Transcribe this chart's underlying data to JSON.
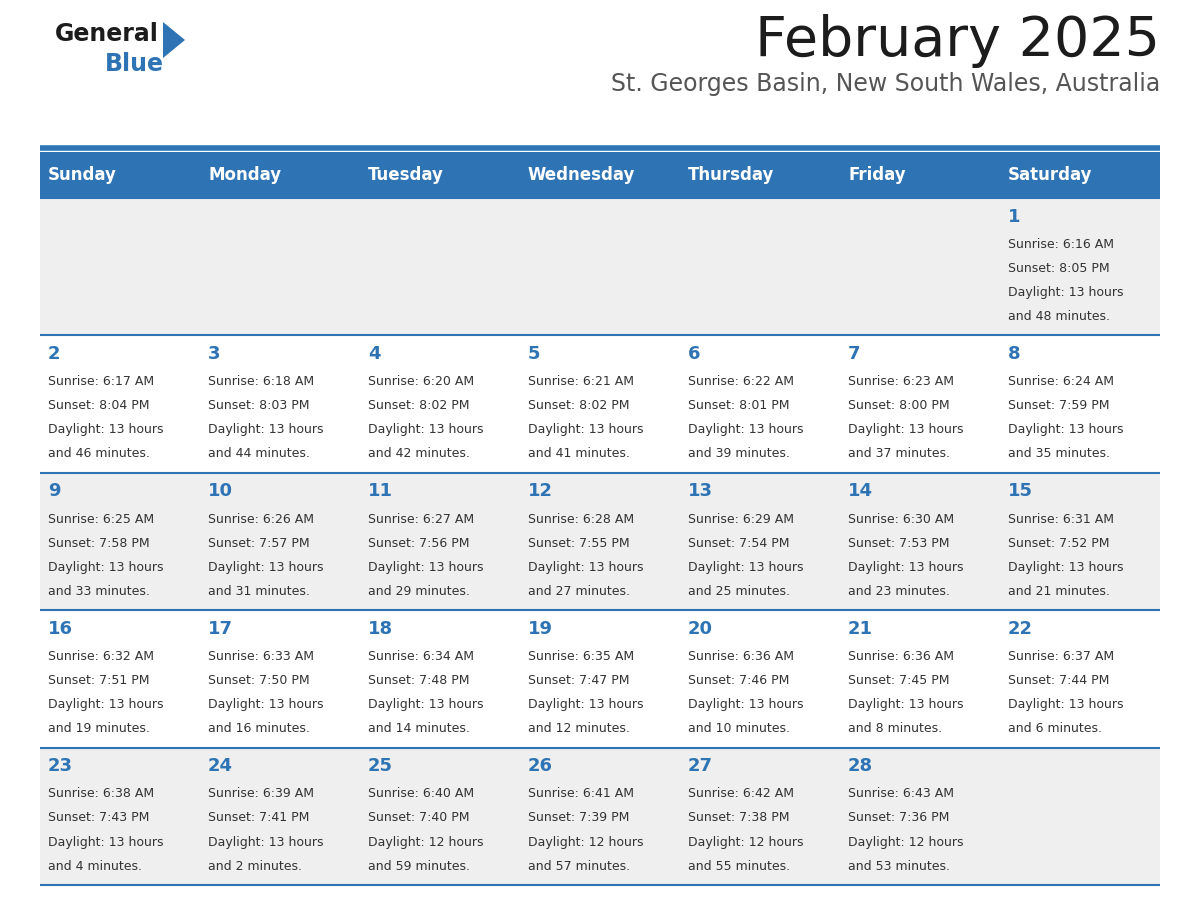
{
  "title": "February 2025",
  "subtitle": "St. Georges Basin, New South Wales, Australia",
  "days_of_week": [
    "Sunday",
    "Monday",
    "Tuesday",
    "Wednesday",
    "Thursday",
    "Friday",
    "Saturday"
  ],
  "header_bg": "#2E74B5",
  "header_text": "#FFFFFF",
  "row_bg_odd": "#EFEFEF",
  "row_bg_even": "#FFFFFF",
  "separator_color": "#2E74B5",
  "day_number_color": "#2E74B5",
  "info_color": "#333333",
  "calendar": [
    [
      null,
      null,
      null,
      null,
      null,
      null,
      {
        "day": "1",
        "sunrise": "6:16 AM",
        "sunset": "8:05 PM",
        "daylight_h": "13 hours",
        "daylight_m": "48 minutes."
      }
    ],
    [
      {
        "day": "2",
        "sunrise": "6:17 AM",
        "sunset": "8:04 PM",
        "daylight_h": "13 hours",
        "daylight_m": "46 minutes."
      },
      {
        "day": "3",
        "sunrise": "6:18 AM",
        "sunset": "8:03 PM",
        "daylight_h": "13 hours",
        "daylight_m": "44 minutes."
      },
      {
        "day": "4",
        "sunrise": "6:20 AM",
        "sunset": "8:02 PM",
        "daylight_h": "13 hours",
        "daylight_m": "42 minutes."
      },
      {
        "day": "5",
        "sunrise": "6:21 AM",
        "sunset": "8:02 PM",
        "daylight_h": "13 hours",
        "daylight_m": "41 minutes."
      },
      {
        "day": "6",
        "sunrise": "6:22 AM",
        "sunset": "8:01 PM",
        "daylight_h": "13 hours",
        "daylight_m": "39 minutes."
      },
      {
        "day": "7",
        "sunrise": "6:23 AM",
        "sunset": "8:00 PM",
        "daylight_h": "13 hours",
        "daylight_m": "37 minutes."
      },
      {
        "day": "8",
        "sunrise": "6:24 AM",
        "sunset": "7:59 PM",
        "daylight_h": "13 hours",
        "daylight_m": "35 minutes."
      }
    ],
    [
      {
        "day": "9",
        "sunrise": "6:25 AM",
        "sunset": "7:58 PM",
        "daylight_h": "13 hours",
        "daylight_m": "33 minutes."
      },
      {
        "day": "10",
        "sunrise": "6:26 AM",
        "sunset": "7:57 PM",
        "daylight_h": "13 hours",
        "daylight_m": "31 minutes."
      },
      {
        "day": "11",
        "sunrise": "6:27 AM",
        "sunset": "7:56 PM",
        "daylight_h": "13 hours",
        "daylight_m": "29 minutes."
      },
      {
        "day": "12",
        "sunrise": "6:28 AM",
        "sunset": "7:55 PM",
        "daylight_h": "13 hours",
        "daylight_m": "27 minutes."
      },
      {
        "day": "13",
        "sunrise": "6:29 AM",
        "sunset": "7:54 PM",
        "daylight_h": "13 hours",
        "daylight_m": "25 minutes."
      },
      {
        "day": "14",
        "sunrise": "6:30 AM",
        "sunset": "7:53 PM",
        "daylight_h": "13 hours",
        "daylight_m": "23 minutes."
      },
      {
        "day": "15",
        "sunrise": "6:31 AM",
        "sunset": "7:52 PM",
        "daylight_h": "13 hours",
        "daylight_m": "21 minutes."
      }
    ],
    [
      {
        "day": "16",
        "sunrise": "6:32 AM",
        "sunset": "7:51 PM",
        "daylight_h": "13 hours",
        "daylight_m": "19 minutes."
      },
      {
        "day": "17",
        "sunrise": "6:33 AM",
        "sunset": "7:50 PM",
        "daylight_h": "13 hours",
        "daylight_m": "16 minutes."
      },
      {
        "day": "18",
        "sunrise": "6:34 AM",
        "sunset": "7:48 PM",
        "daylight_h": "13 hours",
        "daylight_m": "14 minutes."
      },
      {
        "day": "19",
        "sunrise": "6:35 AM",
        "sunset": "7:47 PM",
        "daylight_h": "13 hours",
        "daylight_m": "12 minutes."
      },
      {
        "day": "20",
        "sunrise": "6:36 AM",
        "sunset": "7:46 PM",
        "daylight_h": "13 hours",
        "daylight_m": "10 minutes."
      },
      {
        "day": "21",
        "sunrise": "6:36 AM",
        "sunset": "7:45 PM",
        "daylight_h": "13 hours",
        "daylight_m": "8 minutes."
      },
      {
        "day": "22",
        "sunrise": "6:37 AM",
        "sunset": "7:44 PM",
        "daylight_h": "13 hours",
        "daylight_m": "6 minutes."
      }
    ],
    [
      {
        "day": "23",
        "sunrise": "6:38 AM",
        "sunset": "7:43 PM",
        "daylight_h": "13 hours",
        "daylight_m": "4 minutes."
      },
      {
        "day": "24",
        "sunrise": "6:39 AM",
        "sunset": "7:41 PM",
        "daylight_h": "13 hours",
        "daylight_m": "2 minutes."
      },
      {
        "day": "25",
        "sunrise": "6:40 AM",
        "sunset": "7:40 PM",
        "daylight_h": "12 hours",
        "daylight_m": "59 minutes."
      },
      {
        "day": "26",
        "sunrise": "6:41 AM",
        "sunset": "7:39 PM",
        "daylight_h": "12 hours",
        "daylight_m": "57 minutes."
      },
      {
        "day": "27",
        "sunrise": "6:42 AM",
        "sunset": "7:38 PM",
        "daylight_h": "12 hours",
        "daylight_m": "55 minutes."
      },
      {
        "day": "28",
        "sunrise": "6:43 AM",
        "sunset": "7:36 PM",
        "daylight_h": "12 hours",
        "daylight_m": "53 minutes."
      },
      null
    ]
  ],
  "num_rows": 5,
  "num_cols": 7,
  "figsize": [
    11.88,
    9.18
  ],
  "dpi": 100
}
